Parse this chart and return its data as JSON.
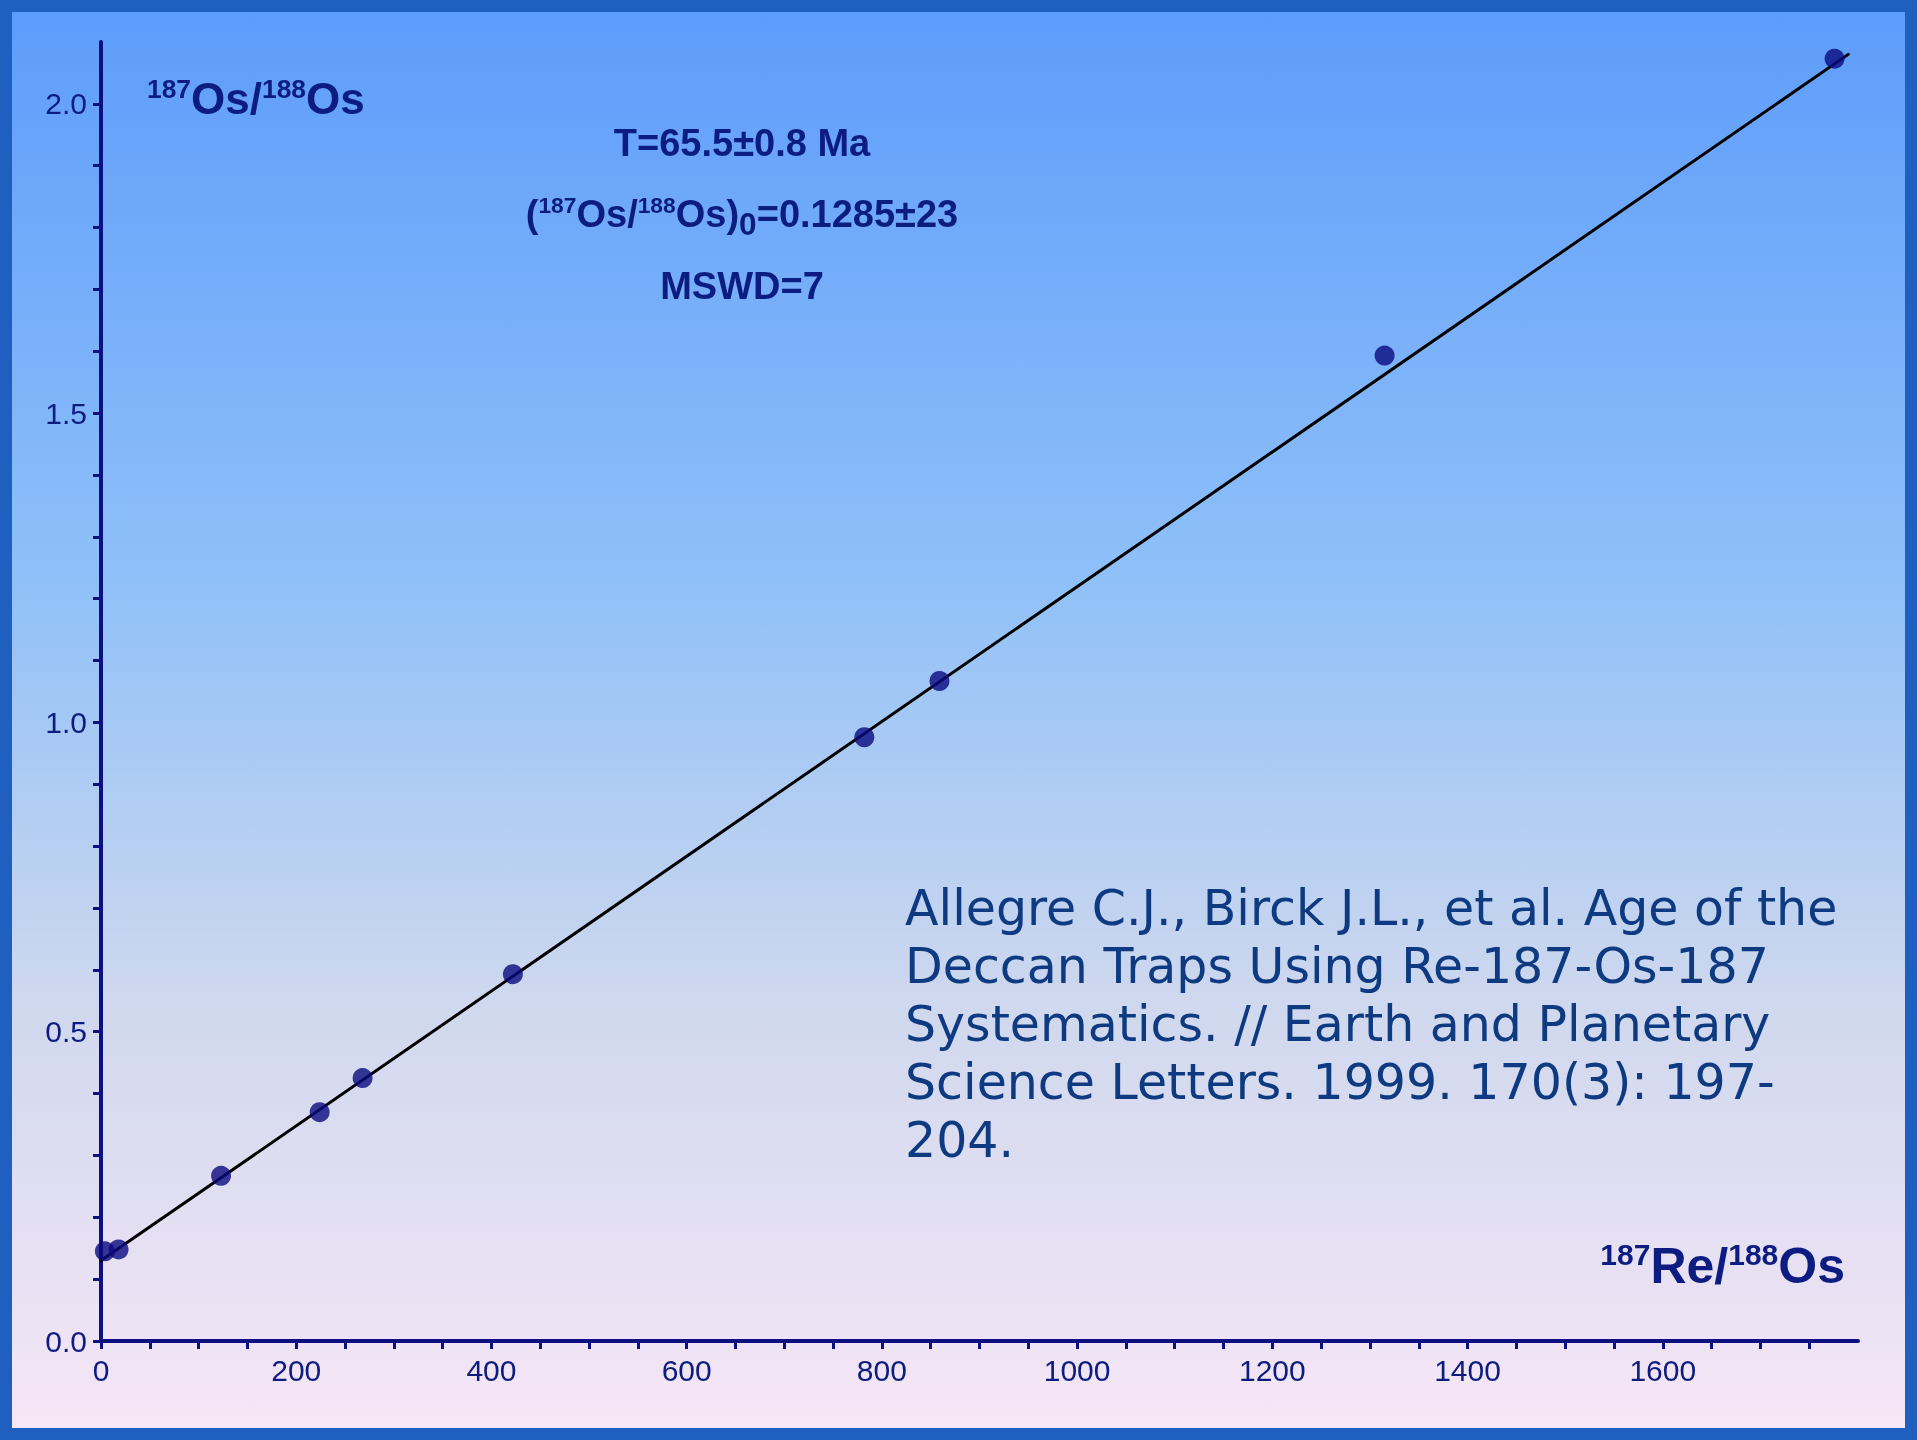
{
  "chart_data": {
    "type": "scatter",
    "xlabel": "$^{187}$Re/$^{188}$Os",
    "ylabel": "$^{187}$Os/$^{188}$Os",
    "annotations": [
      "T=65.5±0.8 Ma",
      "($^{187}$Os/$^{188}$Os)$_{0}$=0.1285±23",
      "MSWD=7",
      "Allegre C.J., Birck J.L., et al. Age of the Deccan Traps Using Re-187-Os-187 Systematics. // Earth and Planetary Science Letters. 1999. 170(3): 197-204."
    ],
    "series": [
      {
        "color": "#0a0a80",
        "marker": "circle",
        "x": [
          4,
          18,
          123,
          224,
          268,
          422,
          782,
          859,
          1315,
          1776
        ],
        "values": [
          0.145,
          0.148,
          0.267,
          0.37,
          0.425,
          0.593,
          0.976,
          1.067,
          1.593,
          2.073
        ]
      },
      {
        "type": "line",
        "color": "#000000",
        "marker": "none",
        "line_style": "solid",
        "x": [
          0,
          1790
        ],
        "values": [
          0.13,
          2.08
        ]
      }
    ],
    "xlim": [
      0,
      1800
    ],
    "ylim": [
      0,
      2.1
    ],
    "xticks": [
      0,
      {
        "value": 50,
        "label": null
      },
      {
        "value": 100,
        "label": null
      },
      {
        "value": 150,
        "label": null
      },
      200,
      {
        "value": 250,
        "label": null
      },
      {
        "value": 300,
        "label": null
      },
      {
        "value": 350,
        "label": null
      },
      400,
      {
        "value": 450,
        "label": null
      },
      {
        "value": 500,
        "label": null
      },
      {
        "value": 550,
        "label": null
      },
      600,
      {
        "value": 650,
        "label": null
      },
      {
        "value": 700,
        "label": null
      },
      {
        "value": 750,
        "label": null
      },
      800,
      {
        "value": 850,
        "label": null
      },
      {
        "value": 900,
        "label": null
      },
      {
        "value": 950,
        "label": null
      },
      1000,
      {
        "value": 1050,
        "label": null
      },
      {
        "value": 1100,
        "label": null
      },
      {
        "value": 1150,
        "label": null
      },
      1200,
      {
        "value": 1250,
        "label": null
      },
      {
        "value": 1300,
        "label": null
      },
      {
        "value": 1350,
        "label": null
      },
      1400,
      {
        "value": 1450,
        "label": null
      },
      {
        "value": 1500,
        "label": null
      },
      {
        "value": 1550,
        "label": null
      },
      1600,
      {
        "value": 1650,
        "label": null
      },
      {
        "value": 1700,
        "label": null
      },
      {
        "value": 1750,
        "label": null
      }
    ],
    "yticks": [
      {
        "value": 0,
        "label": "0.0"
      },
      {
        "value": 0.1,
        "label": null
      },
      {
        "value": 0.2,
        "label": null
      },
      {
        "value": 0.3,
        "label": null
      },
      {
        "value": 0.4,
        "label": null
      },
      0.5,
      {
        "value": 0.6,
        "label": null
      },
      {
        "value": 0.7,
        "label": null
      },
      {
        "value": 0.8,
        "label": null
      },
      {
        "value": 0.9,
        "label": null
      },
      {
        "value": 1,
        "label": "1.0"
      },
      {
        "value": 1.1,
        "label": null
      },
      {
        "value": 1.2,
        "label": null
      },
      {
        "value": 1.3,
        "label": null
      },
      {
        "value": 1.4,
        "label": null
      },
      1.5,
      {
        "value": 1.6,
        "label": null
      },
      {
        "value": 1.7,
        "label": null
      },
      {
        "value": 1.8,
        "label": null
      },
      {
        "value": 1.9,
        "label": null
      },
      {
        "value": 2,
        "label": "2.0"
      }
    ],
    "grid": false
  }
}
